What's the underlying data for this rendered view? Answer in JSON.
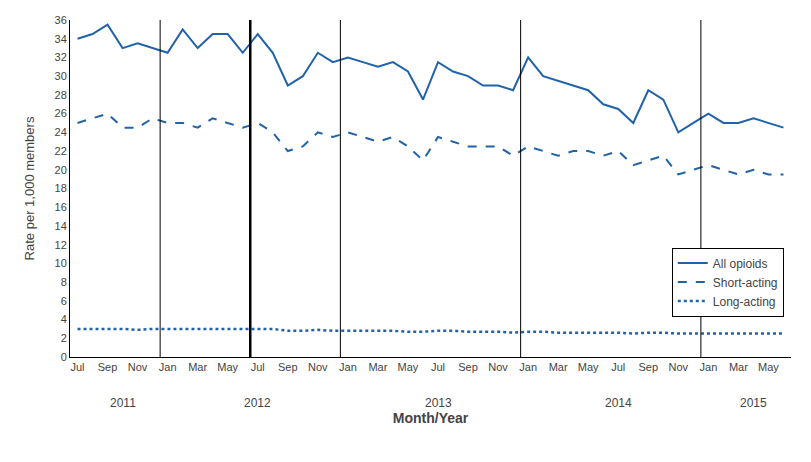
{
  "chart_data": {
    "type": "line",
    "xlabel": "Month/Year",
    "ylabel": "Rate per 1,000 members",
    "categories": [
      "Jul",
      null,
      "Sep",
      null,
      "Nov",
      null,
      "Jan",
      null,
      "Mar",
      null,
      "May",
      null,
      "Jul",
      null,
      "Sep",
      null,
      "Nov",
      null,
      "Jan",
      null,
      "Mar",
      null,
      "May",
      null,
      "Jul",
      null,
      "Sep",
      null,
      "Nov",
      null,
      "Jan",
      null,
      "Mar",
      null,
      "May",
      null,
      "Jul",
      null,
      "Sep",
      null,
      "Nov",
      null,
      "Jan",
      null,
      "Mar",
      null,
      "May",
      null
    ],
    "series": [
      {
        "name": "All opioids",
        "color": "#2163a8",
        "line_style": "solid",
        "values": [
          34.0,
          34.5,
          35.5,
          33.0,
          33.5,
          33.0,
          32.5,
          35.0,
          33.0,
          34.5,
          34.5,
          32.5,
          34.5,
          32.5,
          29.0,
          30.0,
          32.5,
          31.5,
          32.0,
          31.5,
          31.0,
          31.5,
          30.5,
          27.5,
          31.5,
          30.5,
          30.0,
          29.0,
          29.0,
          28.5,
          32.0,
          30.0,
          29.5,
          29.0,
          28.5,
          27.0,
          26.5,
          25.0,
          28.5,
          27.5,
          24.0,
          25.0,
          26.0,
          25.0,
          25.0,
          25.5,
          25.0,
          24.5
        ]
      },
      {
        "name": "Short-acting",
        "color": "#2163a8",
        "line_style": "dashed",
        "values": [
          25.0,
          25.5,
          26.0,
          24.5,
          24.5,
          25.5,
          25.0,
          25.0,
          24.5,
          25.5,
          25.0,
          24.5,
          25.0,
          24.0,
          22.0,
          22.5,
          24.0,
          23.5,
          24.0,
          23.5,
          23.0,
          23.5,
          22.5,
          21.0,
          23.5,
          23.0,
          22.5,
          22.5,
          22.5,
          21.5,
          22.5,
          22.0,
          21.5,
          22.0,
          22.0,
          21.5,
          22.0,
          20.5,
          21.0,
          21.5,
          19.5,
          20.0,
          20.5,
          20.0,
          19.5,
          20.0,
          19.5,
          19.5
        ]
      },
      {
        "name": "Long-acting",
        "color": "#2163a8",
        "line_style": "dotted",
        "values": [
          3.0,
          3.0,
          3.0,
          3.0,
          2.9,
          3.0,
          3.0,
          3.0,
          3.0,
          3.0,
          3.0,
          3.0,
          3.0,
          3.0,
          2.8,
          2.8,
          2.9,
          2.8,
          2.8,
          2.8,
          2.8,
          2.8,
          2.7,
          2.7,
          2.8,
          2.8,
          2.7,
          2.7,
          2.7,
          2.6,
          2.7,
          2.7,
          2.6,
          2.6,
          2.6,
          2.6,
          2.6,
          2.5,
          2.6,
          2.6,
          2.5,
          2.5,
          2.5,
          2.5,
          2.5,
          2.5,
          2.5,
          2.5
        ]
      }
    ],
    "ylim": [
      0,
      36
    ],
    "yticks": [
      0,
      2,
      4,
      6,
      8,
      10,
      12,
      14,
      16,
      18,
      20,
      22,
      24,
      26,
      28,
      30,
      32,
      34,
      36
    ],
    "year_dividers": [
      6,
      18,
      30,
      42
    ],
    "heavy_divider": 12,
    "annotations": [
      {
        "text": "2011",
        "x": 3
      },
      {
        "text": "2012",
        "x": 12
      },
      {
        "text": "2013",
        "x": 24
      },
      {
        "text": "2014",
        "x": 36
      },
      {
        "text": "2015",
        "x": 45
      }
    ],
    "grid": false,
    "legend": "lower right"
  }
}
